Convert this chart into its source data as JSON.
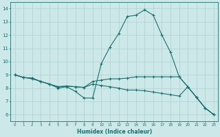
{
  "title": "",
  "xlabel": "Humidex (Indice chaleur)",
  "ylabel": "",
  "bg_color": "#cce8e8",
  "grid_color": "#b0d0d0",
  "line_color": "#1a6e6e",
  "xlim": [
    -0.5,
    23.5
  ],
  "ylim": [
    5.5,
    14.5
  ],
  "xticks": [
    0,
    1,
    2,
    3,
    4,
    5,
    6,
    7,
    8,
    9,
    10,
    11,
    12,
    13,
    14,
    15,
    16,
    17,
    18,
    19,
    20,
    21,
    22,
    23
  ],
  "yticks": [
    6,
    7,
    8,
    9,
    10,
    11,
    12,
    13,
    14
  ],
  "series": [
    {
      "x": [
        0,
        1,
        2,
        3,
        4,
        5,
        6,
        7,
        8,
        9,
        10,
        11,
        12,
        13,
        14,
        15,
        16,
        17,
        18,
        19,
        20,
        21,
        22,
        23
      ],
      "y": [
        9.0,
        8.8,
        8.7,
        8.5,
        8.3,
        8.0,
        8.1,
        7.75,
        7.25,
        7.25,
        9.85,
        11.1,
        12.1,
        13.4,
        13.5,
        13.9,
        13.5,
        12.0,
        10.7,
        8.85,
        8.1,
        7.3,
        6.5,
        6.0
      ]
    },
    {
      "x": [
        0,
        1,
        2,
        3,
        4,
        5,
        6,
        7,
        8,
        9,
        10,
        11,
        12,
        13,
        14,
        15,
        16,
        17,
        18,
        19,
        20,
        21,
        22,
        23
      ],
      "y": [
        9.0,
        8.8,
        8.75,
        8.5,
        8.3,
        8.1,
        8.15,
        8.1,
        8.05,
        8.5,
        8.6,
        8.7,
        8.7,
        8.75,
        8.85,
        8.85,
        8.85,
        8.85,
        8.85,
        8.85,
        8.1,
        7.3,
        6.5,
        6.0
      ]
    },
    {
      "x": [
        0,
        1,
        2,
        3,
        4,
        5,
        6,
        7,
        8,
        9,
        10,
        11,
        12,
        13,
        14,
        15,
        16,
        17,
        18,
        19,
        20,
        21,
        22,
        23
      ],
      "y": [
        9.0,
        8.8,
        8.75,
        8.5,
        8.3,
        8.1,
        8.15,
        8.1,
        8.05,
        8.3,
        8.2,
        8.1,
        8.0,
        7.85,
        7.85,
        7.8,
        7.7,
        7.6,
        7.5,
        7.4,
        8.1,
        7.3,
        6.5,
        6.0
      ]
    }
  ]
}
